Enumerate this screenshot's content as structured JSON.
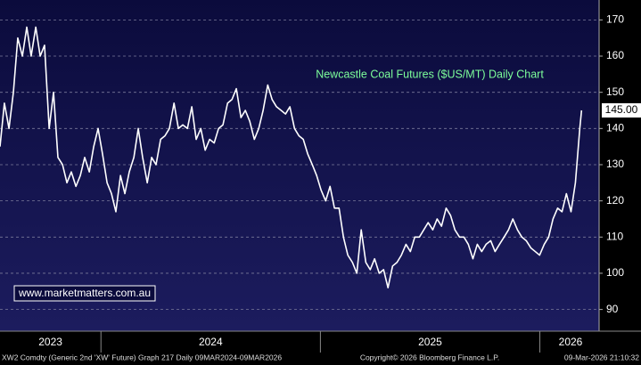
{
  "chart_data": {
    "type": "line",
    "title": "Newcastle Coal Futures ($US/MT) Daily Chart",
    "watermark": "www.marketmatters.com.au",
    "footer_left": "XW2 Comdty (Generic 2nd 'XW' Future) Graph 217 Daily 09MAR2024-09MAR2026",
    "footer_center": "Copyright© 2026 Bloomberg Finance L.P.",
    "footer_right": "09-Mar-2026 21:10:32",
    "last_price_label": "145.00",
    "ylim": [
      84,
      175.5
    ],
    "yticks": [
      90,
      100,
      110,
      120,
      130,
      140,
      150,
      160,
      170
    ],
    "xlim": [
      2023.54,
      2026.27
    ],
    "xticks": [
      {
        "value": 2023.77,
        "label": "2023"
      },
      {
        "value": 2024.5,
        "label": "2024"
      },
      {
        "value": 2025.5,
        "label": "2025"
      },
      {
        "value": 2026.14,
        "label": "2026"
      }
    ],
    "year_boundaries": [
      2024,
      2025,
      2026
    ],
    "grid": true,
    "series": [
      {
        "color": "#ffffff",
        "x": [
          2023.54,
          2023.56,
          2023.581,
          2023.601,
          2023.621,
          2023.642,
          2023.662,
          2023.682,
          2023.703,
          2023.723,
          2023.743,
          2023.764,
          2023.784,
          2023.804,
          2023.825,
          2023.845,
          2023.865,
          2023.886,
          2023.906,
          2023.926,
          2023.947,
          2023.967,
          2023.987,
          2024.007,
          2024.028,
          2024.048,
          2024.068,
          2024.089,
          2024.109,
          2024.129,
          2024.15,
          2024.17,
          2024.19,
          2024.211,
          2024.231,
          2024.251,
          2024.272,
          2024.292,
          2024.312,
          2024.333,
          2024.353,
          2024.373,
          2024.394,
          2024.414,
          2024.434,
          2024.455,
          2024.475,
          2024.495,
          2024.516,
          2024.536,
          2024.556,
          2024.577,
          2024.597,
          2024.617,
          2024.638,
          2024.658,
          2024.678,
          2024.699,
          2024.719,
          2024.739,
          2024.76,
          2024.78,
          2024.8,
          2024.821,
          2024.841,
          2024.861,
          2024.882,
          2024.902,
          2024.922,
          2024.942,
          2024.963,
          2024.983,
          2025.003,
          2025.024,
          2025.044,
          2025.064,
          2025.085,
          2025.105,
          2025.125,
          2025.146,
          2025.166,
          2025.186,
          2025.207,
          2025.227,
          2025.247,
          2025.268,
          2025.288,
          2025.308,
          2025.329,
          2025.349,
          2025.369,
          2025.39,
          2025.41,
          2025.43,
          2025.451,
          2025.471,
          2025.491,
          2025.512,
          2025.532,
          2025.552,
          2025.573,
          2025.593,
          2025.613,
          2025.634,
          2025.654,
          2025.674,
          2025.695,
          2025.715,
          2025.735,
          2025.755,
          2025.776,
          2025.796,
          2025.816,
          2025.837,
          2025.857,
          2025.877,
          2025.898,
          2025.918,
          2025.938,
          2025.959,
          2025.979,
          2025.999,
          2026.02,
          2026.04,
          2026.06,
          2026.081,
          2026.101,
          2026.121,
          2026.142,
          2026.162,
          2026.182,
          2026.19
        ],
        "values": [
          135,
          147,
          140,
          150,
          165,
          160,
          168,
          160,
          168,
          160,
          163,
          140,
          150,
          132,
          130,
          125,
          128,
          124,
          127,
          132,
          128,
          135,
          140,
          133,
          125,
          122,
          117,
          127,
          122,
          128,
          132,
          140,
          132,
          125,
          132,
          130,
          137,
          138,
          140,
          147,
          140,
          141,
          140,
          146,
          137,
          140,
          134,
          137,
          136,
          140,
          141,
          147,
          148,
          151,
          143,
          145,
          142,
          137,
          140,
          145,
          152,
          148,
          146,
          145,
          144,
          146,
          140,
          138,
          137,
          133,
          130,
          127,
          123,
          120,
          124,
          118,
          118,
          110,
          105,
          103,
          100,
          112,
          103,
          101,
          104,
          100,
          101,
          96,
          102,
          103,
          105,
          108,
          106,
          110,
          110,
          112,
          114,
          112,
          115,
          113,
          118,
          116,
          112,
          110,
          110,
          108,
          104,
          108,
          106,
          108,
          109,
          106,
          108,
          110,
          112,
          115,
          112,
          110,
          109,
          107,
          106,
          105,
          108,
          110,
          115,
          118,
          117,
          122,
          117,
          125,
          140,
          145
        ]
      }
    ]
  }
}
